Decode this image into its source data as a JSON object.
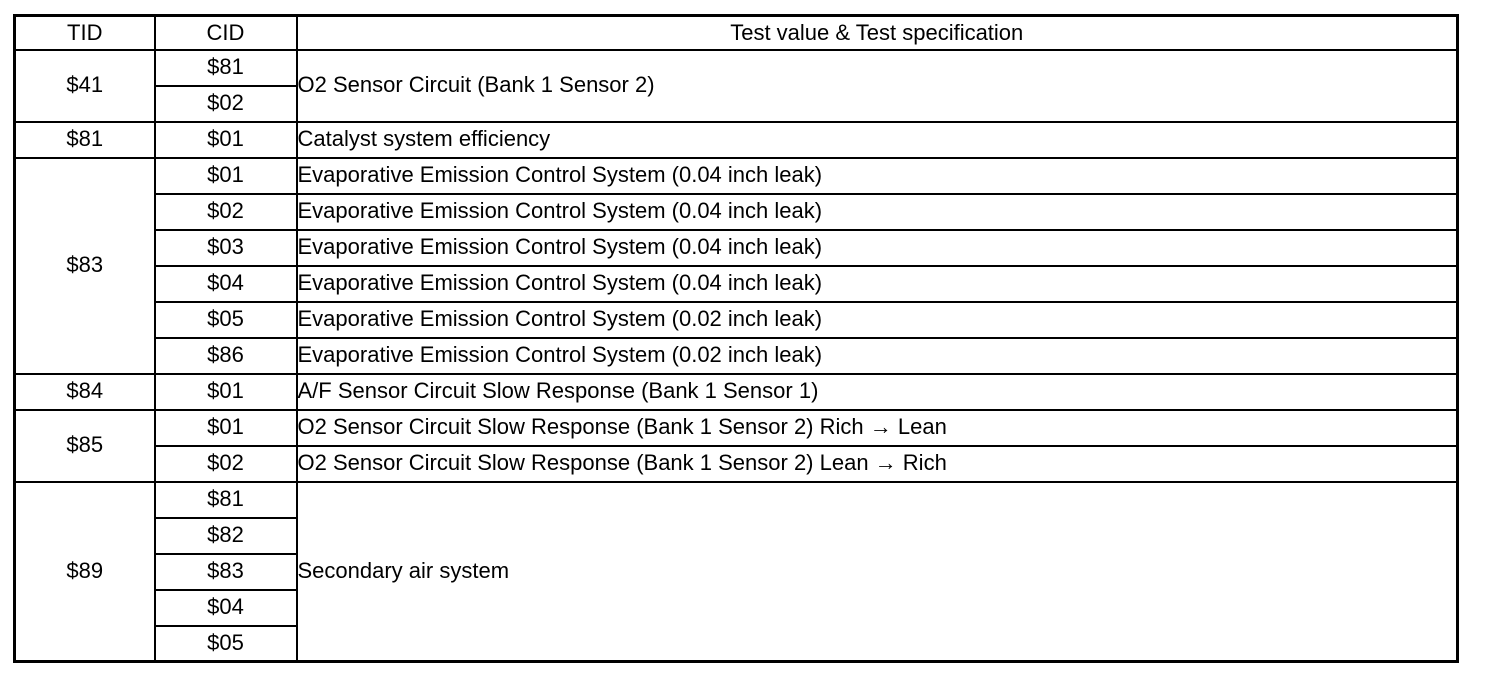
{
  "table": {
    "headers": [
      "TID",
      "CID",
      "Test value & Test specification"
    ],
    "groups": [
      {
        "tid": "$41",
        "spec": "O2 Sensor Circuit (Bank 1 Sensor 2)",
        "rows": [
          {
            "cid": "$81"
          },
          {
            "cid": "$02"
          }
        ]
      },
      {
        "tid": "$81",
        "rows": [
          {
            "cid": "$01",
            "spec": "Catalyst system efficiency"
          }
        ]
      },
      {
        "tid": "$83",
        "rows": [
          {
            "cid": "$01",
            "spec": "Evaporative Emission Control System (0.04 inch leak)"
          },
          {
            "cid": "$02",
            "spec": "Evaporative Emission Control System (0.04 inch leak)"
          },
          {
            "cid": "$03",
            "spec": "Evaporative Emission Control System (0.04 inch leak)"
          },
          {
            "cid": "$04",
            "spec": "Evaporative Emission Control System (0.04 inch leak)"
          },
          {
            "cid": "$05",
            "spec": "Evaporative Emission Control System (0.02 inch leak)"
          },
          {
            "cid": "$86",
            "spec": "Evaporative Emission Control System (0.02 inch leak)"
          }
        ]
      },
      {
        "tid": "$84",
        "rows": [
          {
            "cid": "$01",
            "spec": "A/F Sensor Circuit Slow Response (Bank 1 Sensor 1)"
          }
        ]
      },
      {
        "tid": "$85",
        "rows": [
          {
            "cid": "$01",
            "spec": "O2 Sensor Circuit Slow Response (Bank 1 Sensor 2) Rich → Lean"
          },
          {
            "cid": "$02",
            "spec": "O2 Sensor Circuit Slow Response (Bank 1 Sensor 2) Lean → Rich"
          }
        ]
      },
      {
        "tid": "$89",
        "spec": "Secondary air system",
        "rows": [
          {
            "cid": "$81"
          },
          {
            "cid": "$82"
          },
          {
            "cid": "$83"
          },
          {
            "cid": "$04"
          },
          {
            "cid": "$05"
          }
        ]
      }
    ]
  }
}
